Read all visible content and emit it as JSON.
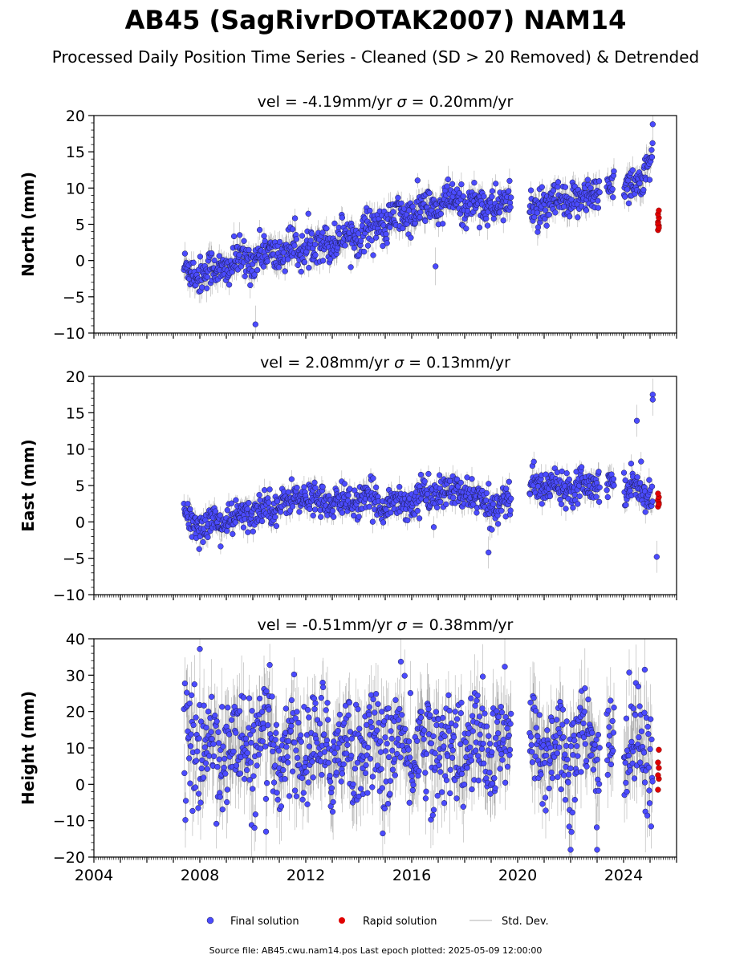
{
  "chart_data": {
    "type": "scatter",
    "title": "AB45 (SagRivrDOTAK2007) NAM14",
    "subtitle": "Processed Daily Position Time Series - Cleaned (SD > 20 Removed) & Detrended",
    "x_range": [
      2004,
      2026
    ],
    "x_ticks": [
      "2004",
      "2008",
      "2012",
      "2016",
      "2020",
      "2024"
    ],
    "data_start": 2007.4,
    "data_end": 2025.35,
    "gaps": [
      [
        2019.75,
        2020.45
      ],
      [
        2023.1,
        2023.35
      ],
      [
        2023.65,
        2024.0
      ]
    ],
    "panels": [
      {
        "ylabel": "North (mm)",
        "subtitle_vel": "vel = -4.19mm/yr",
        "subtitle_sigma": "= 0.20mm/yr",
        "ylim": [
          -10,
          20
        ],
        "yticks": [
          "−10",
          "−5",
          "0",
          "5",
          "10",
          "15",
          "20"
        ],
        "ytick_values": [
          -10,
          -5,
          0,
          5,
          10,
          15,
          20
        ],
        "trend": [
          [
            2007.4,
            -1.5
          ],
          [
            2008.5,
            -1.5
          ],
          [
            2010.0,
            0.5
          ],
          [
            2012.0,
            1.8
          ],
          [
            2014.0,
            3.8
          ],
          [
            2016.0,
            6.5
          ],
          [
            2017.5,
            8.0
          ],
          [
            2019.7,
            7.5
          ],
          [
            2020.5,
            7.0
          ],
          [
            2022.0,
            8.0
          ],
          [
            2023.0,
            9.5
          ],
          [
            2024.0,
            11.0
          ],
          [
            2024.6,
            10.0
          ],
          [
            2025.1,
            15.0
          ],
          [
            2025.35,
            13.0
          ]
        ],
        "noise": 1.3,
        "spikes": [
          [
            2010.1,
            -8.8
          ],
          [
            2016.9,
            -0.8
          ],
          [
            2025.1,
            18.8
          ]
        ],
        "rapid": [
          4.2,
          4.8,
          5.3,
          5.9,
          6.4,
          6.9,
          5.0,
          4.5
        ]
      },
      {
        "ylabel": "East (mm)",
        "subtitle_vel": "vel = 2.08mm/yr",
        "subtitle_sigma": "= 0.13mm/yr",
        "ylim": [
          -10,
          20
        ],
        "yticks": [
          "−10",
          "−5",
          "0",
          "5",
          "10",
          "15",
          "20"
        ],
        "ytick_values": [
          -10,
          -5,
          0,
          5,
          10,
          15,
          20
        ],
        "trend": [
          [
            2007.4,
            0.5
          ],
          [
            2008.0,
            -0.5
          ],
          [
            2009.5,
            0.5
          ],
          [
            2010.5,
            2.0
          ],
          [
            2012.0,
            3.5
          ],
          [
            2013.0,
            2.5
          ],
          [
            2014.0,
            3.0
          ],
          [
            2015.5,
            2.5
          ],
          [
            2017.0,
            4.0
          ],
          [
            2018.0,
            4.0
          ],
          [
            2019.0,
            2.0
          ],
          [
            2019.7,
            3.0
          ],
          [
            2020.5,
            5.0
          ],
          [
            2022.0,
            5.0
          ],
          [
            2023.0,
            5.5
          ],
          [
            2024.2,
            5.0
          ],
          [
            2025.0,
            4.0
          ],
          [
            2025.35,
            2.0
          ]
        ],
        "noise": 1.1,
        "spikes": [
          [
            2018.9,
            -4.2
          ],
          [
            2024.5,
            13.9
          ],
          [
            2025.1,
            17.5
          ],
          [
            2025.1,
            16.8
          ],
          [
            2025.25,
            -4.8
          ]
        ],
        "rapid": [
          2.1,
          2.6,
          3.0,
          3.4,
          3.9,
          2.4
        ]
      },
      {
        "ylabel": "Height (mm)",
        "subtitle_vel": "vel = -0.51mm/yr",
        "subtitle_sigma": "= 0.38mm/yr",
        "ylim": [
          -20,
          40
        ],
        "yticks": [
          "−20",
          "−10",
          "0",
          "10",
          "20",
          "30",
          "40"
        ],
        "ytick_values": [
          -20,
          -10,
          0,
          10,
          20,
          30,
          40
        ],
        "trend": [
          [
            2007.4,
            10.0
          ],
          [
            2025.35,
            10.0
          ]
        ],
        "noise": 7.5,
        "spikes": [
          [
            2008.0,
            37.2
          ],
          [
            2010.5,
            -13.0
          ],
          [
            2022.0,
            -18.0
          ],
          [
            2023.0,
            -18.0
          ],
          [
            2024.8,
            31.5
          ]
        ],
        "rapid": [
          -1.5,
          1.5,
          2.5,
          4.5,
          6.0,
          9.5
        ]
      }
    ],
    "legend": {
      "placement": "bottom-center",
      "items": [
        {
          "label": "Final solution",
          "color": "#4b4bff"
        },
        {
          "label": "Rapid solution",
          "color": "#e00000"
        },
        {
          "label": "Std. Dev.",
          "color": "#cccccc"
        }
      ]
    },
    "footer": "Source file: AB45.cwu.nam14.pos  Last epoch plotted: 2025-05-09 12:00:00",
    "colors": {
      "final": "#4b4bff",
      "final_edge": "#1a1a4a",
      "rapid": "#e00000",
      "errorbar": "#555555"
    }
  }
}
